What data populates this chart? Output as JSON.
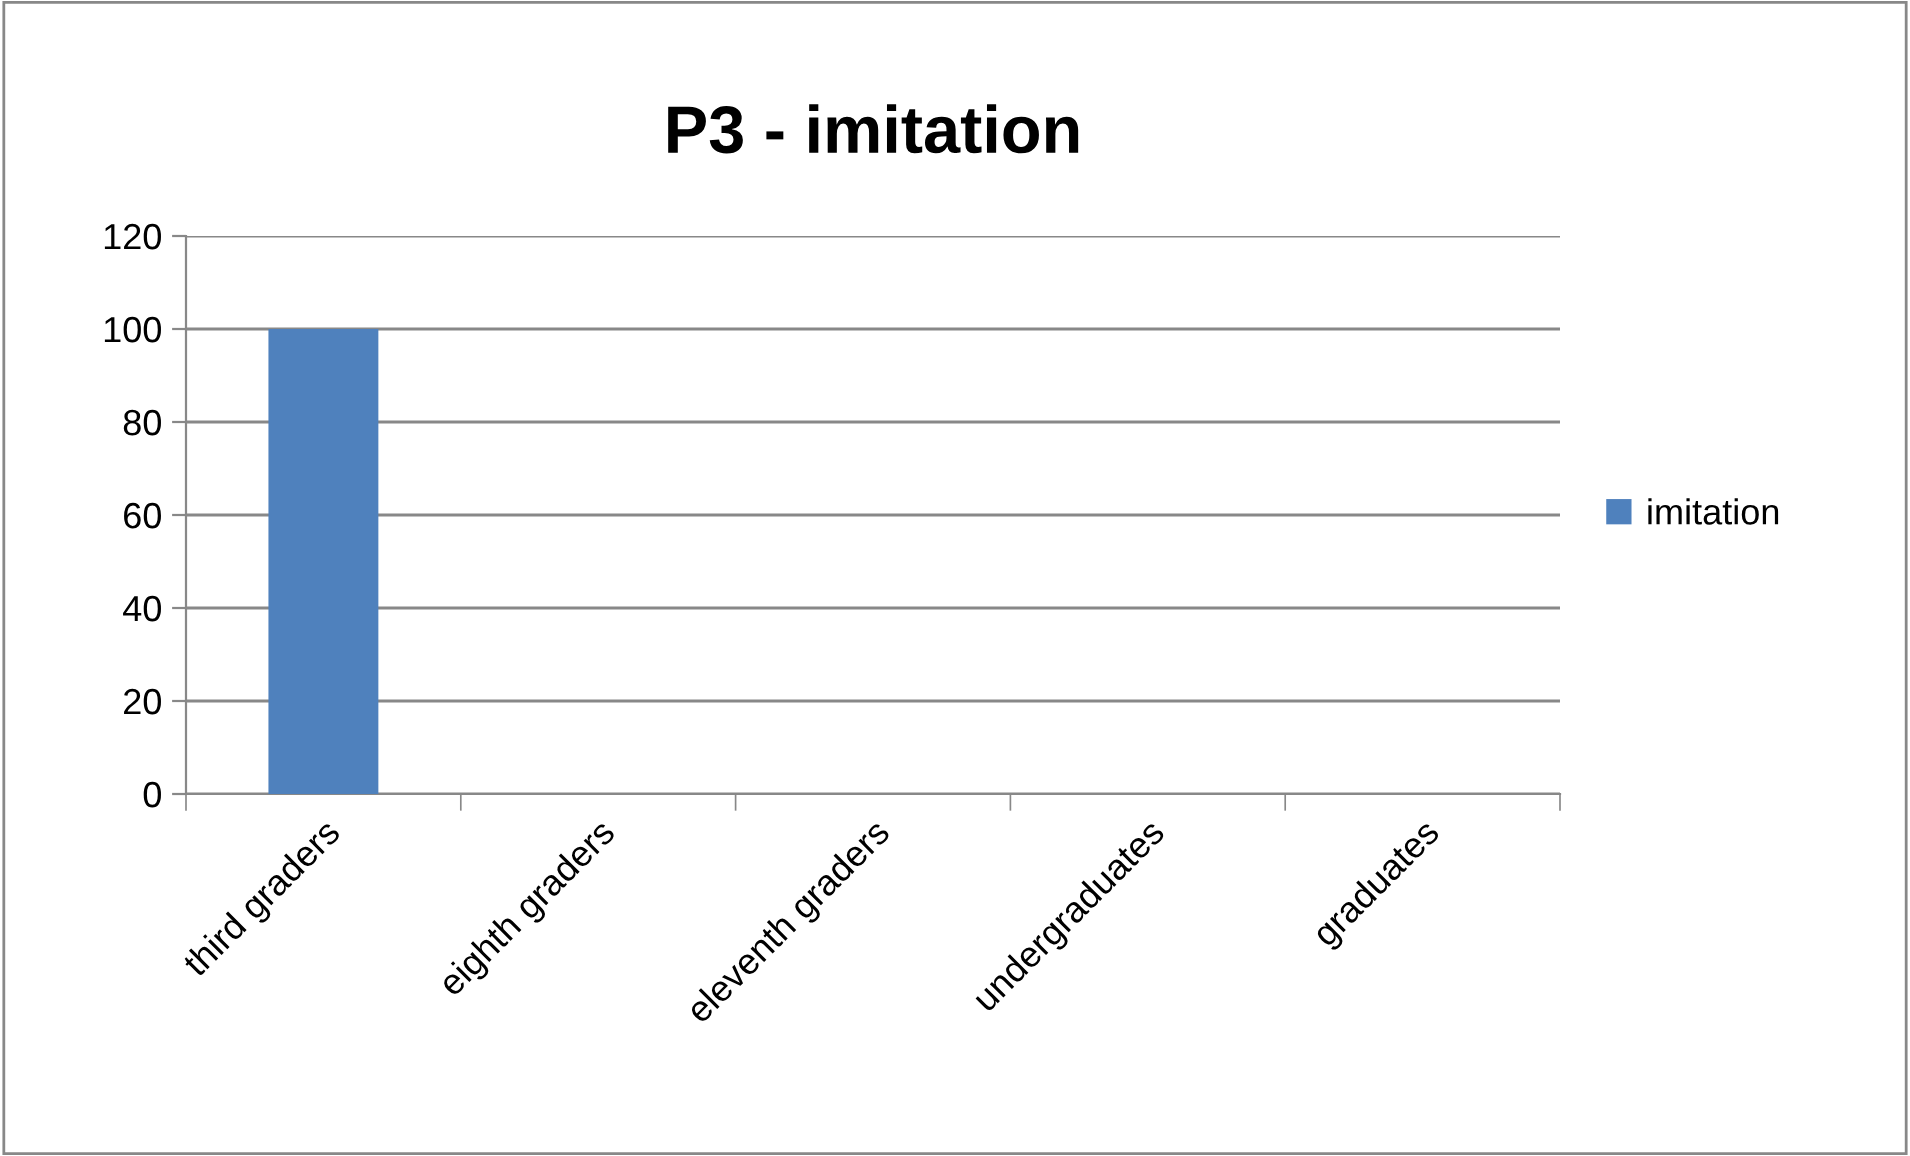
{
  "chart_data": {
    "type": "bar",
    "title": "P3 - imitation",
    "categories": [
      "third graders",
      "eighth graders",
      "eleventh graders",
      "undergraduates",
      "graduates"
    ],
    "series": [
      {
        "name": "imitation",
        "color": "#4f81bd",
        "values": [
          100,
          0,
          0,
          0,
          0
        ]
      }
    ],
    "ylim": [
      0,
      120
    ],
    "yticks": [
      0,
      20,
      40,
      60,
      80,
      100,
      120
    ],
    "grid": "y",
    "legend": "right"
  }
}
